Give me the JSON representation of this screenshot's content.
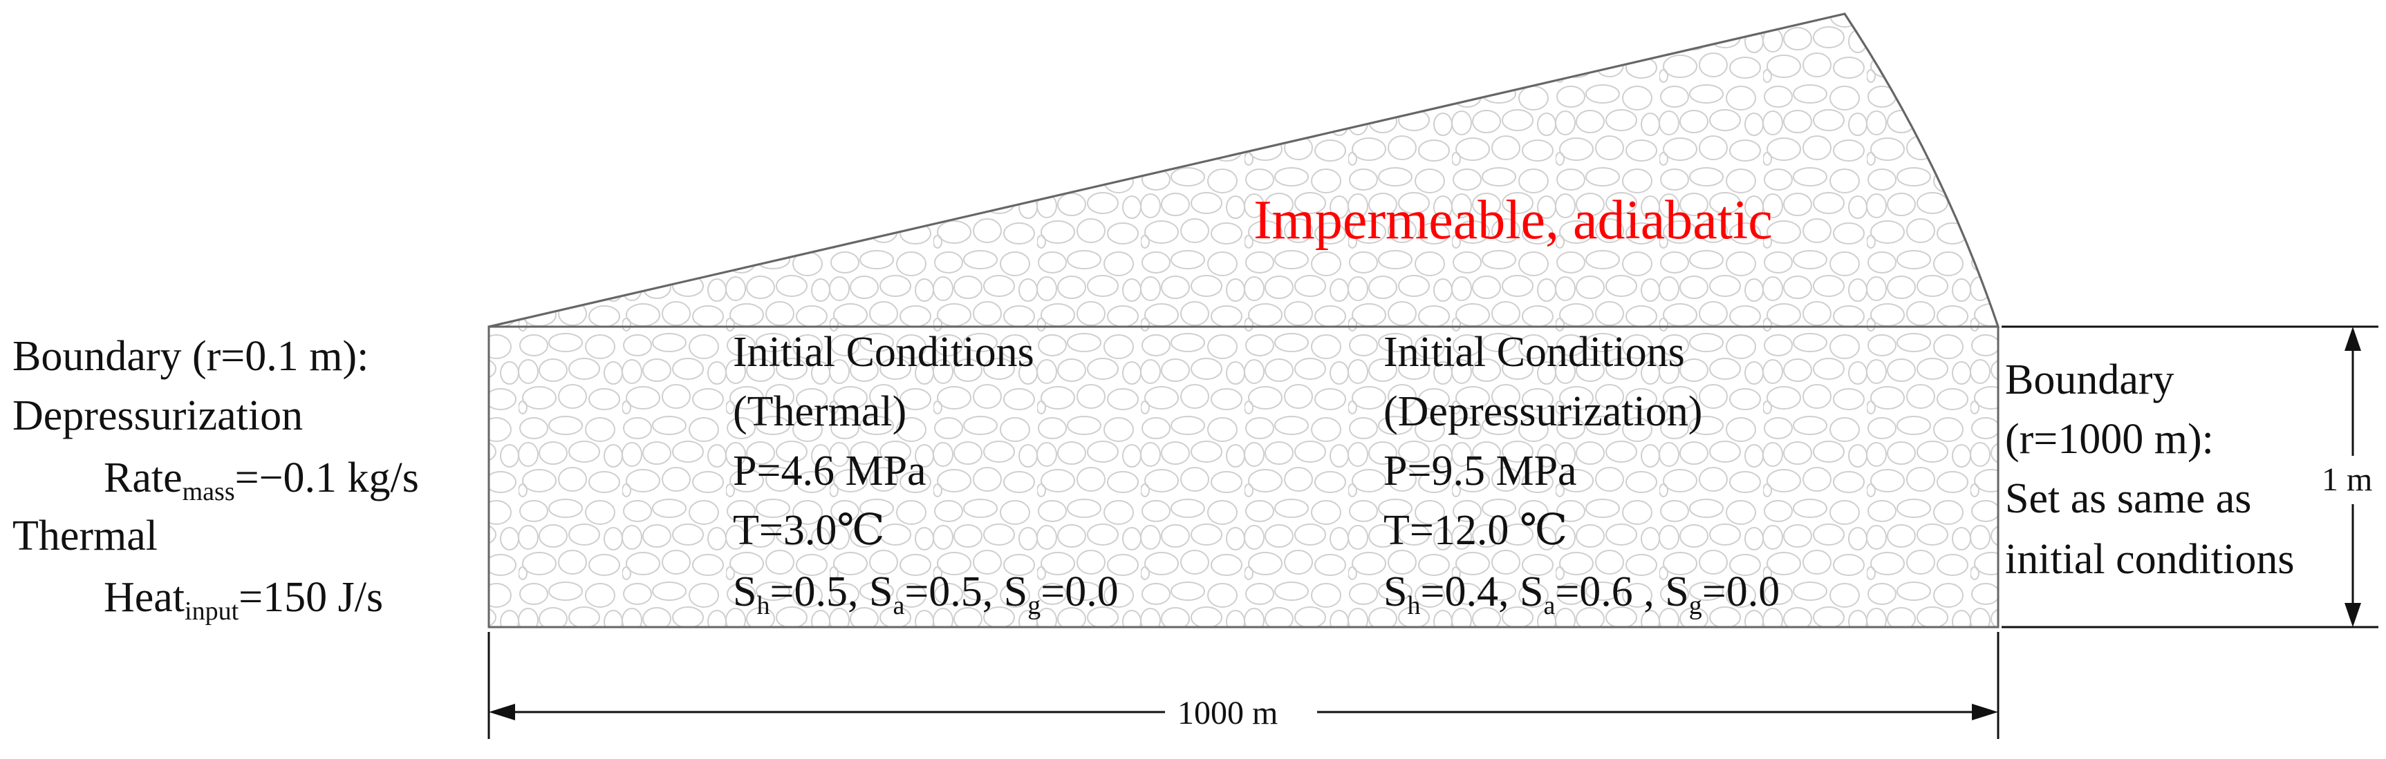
{
  "top_label": "Impermeable, adiabatic",
  "left_boundary": {
    "title": "Boundary (r=0.1 m):",
    "depressurization": "Depressurization",
    "rate_prefix": "Rate",
    "rate_sub": "mass",
    "rate_value": "=−0.1 kg/s",
    "thermal": "Thermal",
    "heat_prefix": "Heat",
    "heat_sub": "input",
    "heat_value": "=150 J/s"
  },
  "initial_thermal": {
    "title": "Initial Conditions",
    "subtitle": "(Thermal)",
    "pressure": "P=4.6 MPa",
    "temperature": "T=3.0℃",
    "sat": {
      "h": "=0.5, ",
      "a": "=0.5, ",
      "g": "=0.0"
    }
  },
  "initial_depress": {
    "title": "Initial Conditions",
    "subtitle": "(Depressurization)",
    "pressure": "P=9.5 MPa",
    "temperature": "T=12.0 ℃",
    "sat": {
      "h": "=0.4, ",
      "a": "=0.6 , ",
      "g": "=0.0"
    }
  },
  "right_boundary": {
    "line1": "Boundary",
    "line2": "(r=1000 m):",
    "line3": "Set as same as",
    "line4": "initial conditions"
  },
  "dims": {
    "height": "1 m",
    "width": "1000 m"
  },
  "sat_letters": {
    "S": "S",
    "h": "h",
    "a": "a",
    "g": "g"
  },
  "colors": {
    "annotation_red": "#ff0000",
    "outline": "#666666",
    "pebble": "#cfcfcf"
  }
}
